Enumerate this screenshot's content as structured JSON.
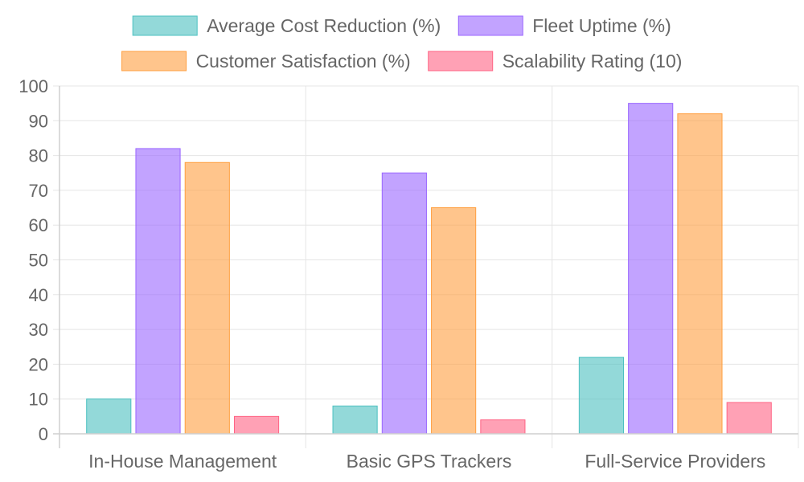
{
  "chart_data": {
    "type": "bar",
    "categories": [
      "In-House Management",
      "Basic GPS Trackers",
      "Full-Service Providers"
    ],
    "series": [
      {
        "name": "Average Cost Reduction (%)",
        "values": [
          10,
          8,
          22
        ],
        "color": "#4BC0C0"
      },
      {
        "name": "Fleet Uptime (%)",
        "values": [
          82,
          75,
          95
        ],
        "color": "#9966FF"
      },
      {
        "name": "Customer Satisfaction (%)",
        "values": [
          78,
          65,
          92
        ],
        "color": "#FF9F40"
      },
      {
        "name": "Scalability Rating (10)",
        "values": [
          5,
          4,
          9
        ],
        "color": "#FF6384"
      }
    ],
    "ylim": [
      0,
      100
    ],
    "yticks": [
      0,
      10,
      20,
      30,
      40,
      50,
      60,
      70,
      80,
      90,
      100
    ],
    "grid": true,
    "legend_position": "top"
  }
}
